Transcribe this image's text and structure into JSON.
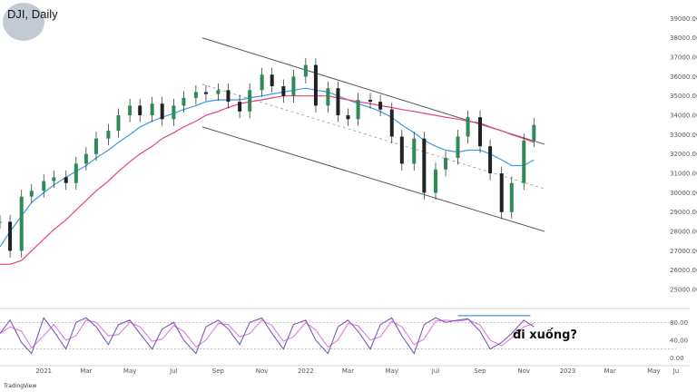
{
  "header": {
    "title": "DJI",
    "interval": "Daily",
    "separator": ", "
  },
  "watermark": "TradingView",
  "annotation": "đi xuống?",
  "chart_data": {
    "type": "line",
    "title": "DJI, Daily",
    "price_axis": {
      "ticks": [
        25000,
        26000,
        27000,
        28000,
        29000,
        30000,
        31000,
        32000,
        33000,
        34000,
        35000,
        36000,
        37000,
        38000,
        39000
      ],
      "ylim": [
        24300,
        39300
      ],
      "position": "right"
    },
    "stoch_axis": {
      "ticks": [
        "0.00",
        "40.00",
        "80.00"
      ],
      "ylim": [
        -5,
        107
      ],
      "levels": [
        20,
        80
      ]
    },
    "x_ticks": [
      "2021",
      "Mar",
      "May",
      "Jul",
      "Sep",
      "Nov",
      "2022",
      "Mar",
      "May",
      "Jul",
      "Sep",
      "Nov",
      "2023",
      "Mar",
      "May",
      "Ju"
    ],
    "x_tick_dates": [
      "2021-01-01",
      "2021-03-01",
      "2021-05-01",
      "2021-07-01",
      "2021-09-01",
      "2021-11-01",
      "2022-01-01",
      "2022-03-01",
      "2022-05-01",
      "2022-07-01",
      "2022-09-01",
      "2022-11-01",
      "2023-01-01",
      "2023-03-01",
      "2023-05-01",
      "2023-06-01"
    ],
    "price_series": {
      "dates": [
        "2020-11-01",
        "2020-11-15",
        "2020-12-01",
        "2020-12-15",
        "2021-01-01",
        "2021-01-15",
        "2021-02-01",
        "2021-02-15",
        "2021-03-01",
        "2021-03-15",
        "2021-04-01",
        "2021-04-15",
        "2021-05-01",
        "2021-05-15",
        "2021-06-01",
        "2021-06-15",
        "2021-07-01",
        "2021-07-15",
        "2021-08-01",
        "2021-08-15",
        "2021-09-01",
        "2021-09-15",
        "2021-10-01",
        "2021-10-15",
        "2021-11-01",
        "2021-11-15",
        "2021-12-01",
        "2021-12-15",
        "2022-01-01",
        "2022-01-15",
        "2022-02-01",
        "2022-02-15",
        "2022-03-01",
        "2022-03-15",
        "2022-04-01",
        "2022-04-15",
        "2022-05-01",
        "2022-05-15",
        "2022-06-01",
        "2022-06-15",
        "2022-07-01",
        "2022-07-15",
        "2022-08-01",
        "2022-08-15",
        "2022-09-01",
        "2022-09-15",
        "2022-10-01",
        "2022-10-15",
        "2022-11-01",
        "2022-11-15"
      ],
      "values": [
        28500,
        27000,
        29800,
        30100,
        30600,
        30800,
        30500,
        31500,
        32000,
        32800,
        33200,
        34000,
        34500,
        34000,
        34600,
        33800,
        34500,
        34900,
        35200,
        35100,
        35300,
        34700,
        34200,
        35300,
        36100,
        35500,
        35000,
        36000,
        36600,
        34500,
        35400,
        34000,
        33800,
        34800,
        34700,
        34300,
        32900,
        31500,
        32800,
        30000,
        31200,
        31800,
        32900,
        33900,
        32400,
        31000,
        29000,
        30500,
        32700,
        33500
      ]
    },
    "series": [
      {
        "name": "",
        "role": "price"
      },
      {
        "name": "",
        "role": "ma_fast",
        "color": "#3d9be9",
        "values": [
          27200,
          28000,
          28800,
          29500,
          30000,
          30400,
          30800,
          31100,
          31400,
          31800,
          32200,
          32600,
          33000,
          33400,
          33700,
          33900,
          34100,
          34300,
          34500,
          34700,
          34800,
          34800,
          34800,
          34900,
          35000,
          35100,
          35200,
          35300,
          35400,
          35300,
          35200,
          35000,
          34800,
          34600,
          34400,
          34200,
          33900,
          33500,
          33100,
          32700,
          32400,
          32200,
          32100,
          32200,
          32200,
          32000,
          31700,
          31400,
          31400,
          31700
        ]
      },
      {
        "name": "",
        "role": "ma_slow",
        "color": "#e8427c",
        "values": [
          26300,
          26300,
          26500,
          27000,
          27600,
          28100,
          28600,
          29100,
          29600,
          30100,
          30600,
          31100,
          31600,
          32000,
          32400,
          32800,
          33100,
          33400,
          33700,
          34000,
          34200,
          34400,
          34600,
          34700,
          34800,
          34900,
          35000,
          35000,
          35000,
          35000,
          35000,
          34900,
          34800,
          34700,
          34600,
          34500,
          34400,
          34300,
          34200,
          34100,
          34000,
          33900,
          33800,
          33700,
          33600,
          33400,
          33200,
          33000,
          32800,
          32600
        ]
      }
    ],
    "channel": {
      "upper": [
        [
          "2021-08-10",
          38000
        ],
        [
          "2022-11-30",
          32500
        ]
      ],
      "middle": [
        [
          "2021-08-10",
          35600
        ],
        [
          "2022-11-30",
          30200
        ]
      ],
      "lower": [
        [
          "2021-08-10",
          33400
        ],
        [
          "2022-11-30",
          28000
        ]
      ]
    },
    "stochastic": {
      "k_color": "#7a5ab8",
      "d_color": "#e07be0",
      "values": [
        55,
        85,
        35,
        10,
        90,
        60,
        20,
        80,
        90,
        70,
        30,
        75,
        85,
        55,
        20,
        65,
        80,
        40,
        10,
        70,
        85,
        65,
        30,
        80,
        90,
        55,
        20,
        75,
        85,
        40,
        10,
        70,
        85,
        60,
        20,
        75,
        90,
        50,
        10,
        75,
        90,
        80,
        85,
        88,
        60,
        20,
        35,
        55,
        85,
        70
      ],
      "overbought_line": {
        "from": "2022-08-01",
        "to": "2022-11-10",
        "level": 95,
        "color": "#3d9be9"
      }
    }
  }
}
